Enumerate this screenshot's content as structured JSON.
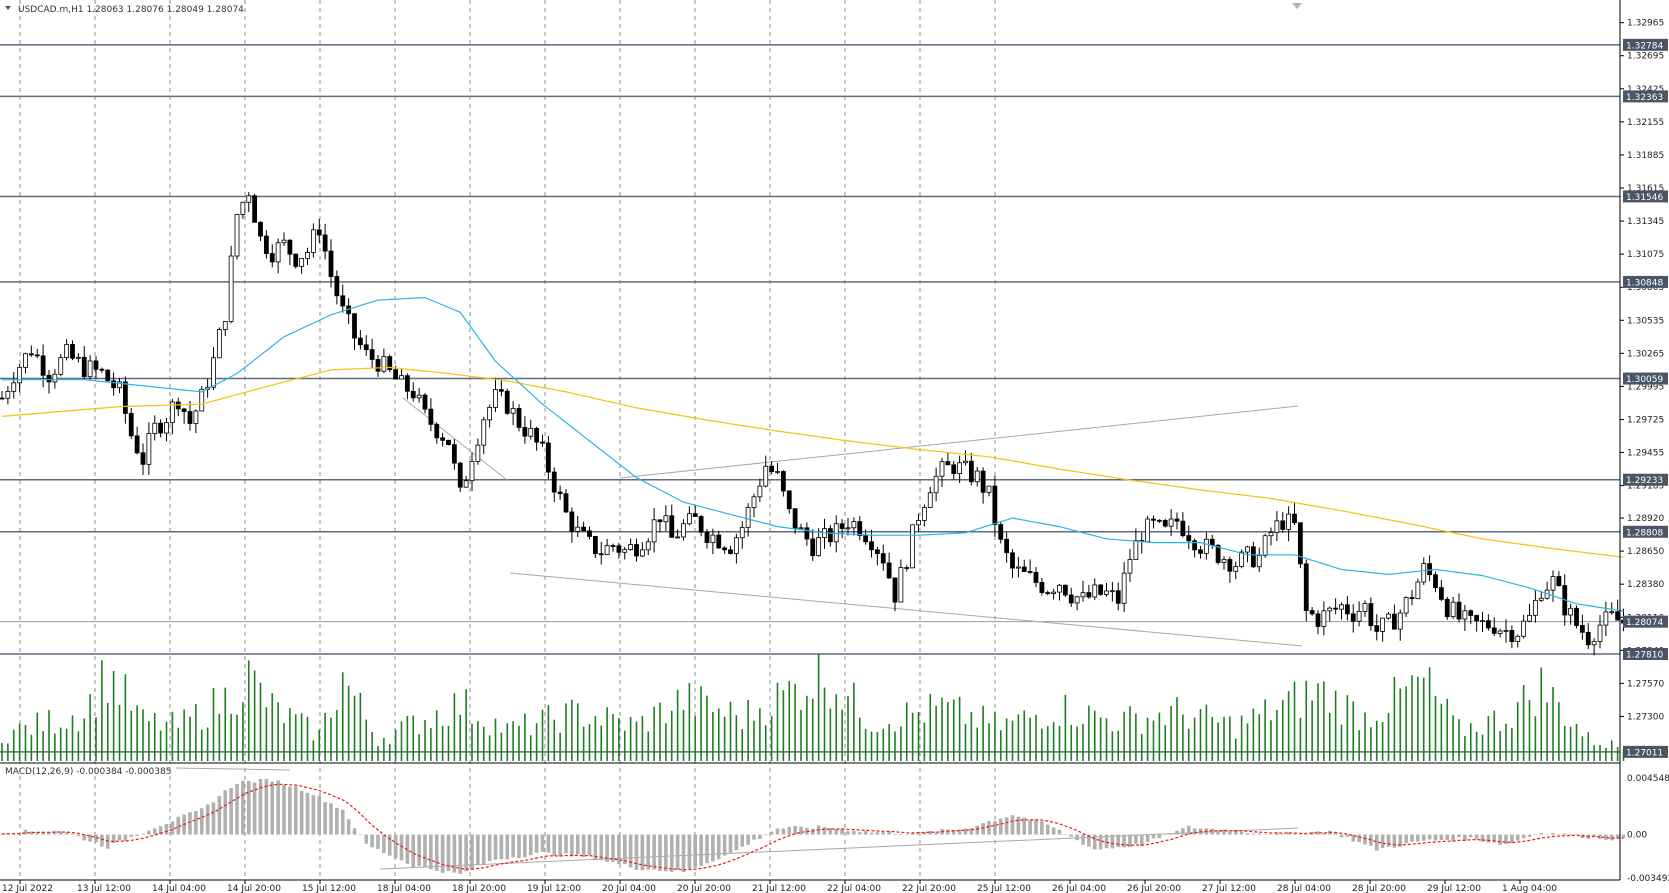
{
  "header": {
    "symbol_info": "USDCAD.m,H1  1.28063 1.28076 1.28049 1.28074",
    "macd_info": "MACD(12,26,9) -0.000384 -0.000385"
  },
  "colors": {
    "background": "#ffffff",
    "candle_up": "#ffffff",
    "candle_down": "#000000",
    "candle_wick": "#000000",
    "volume": "#1e7d1e",
    "ma_fast": "#29b6e6",
    "ma_slow": "#f2c40f",
    "level_line": "#5b6b80",
    "trend_line": "#a8a8a8",
    "grid": "#8c8c8c",
    "macd_hist": "#b0b0b0",
    "macd_signal": "#e0201a"
  },
  "chart_data": {
    "type": "candlestick",
    "symbol": "USDCAD.m",
    "timeframe": "H1",
    "last_ohlc": {
      "open": 1.28063,
      "high": 1.28076,
      "low": 1.28049,
      "close": 1.28074
    },
    "price_ylim": [
      1.2692,
      1.3315
    ],
    "price_ticks": [
      "1.32965",
      "1.32695",
      "1.32425",
      "1.32155",
      "1.31885",
      "1.31615",
      "1.31345",
      "1.31075",
      "1.30805",
      "1.30535",
      "1.30265",
      "1.29995",
      "1.29725",
      "1.29455",
      "1.29185",
      "1.28920",
      "1.28650",
      "1.28380",
      "1.28110",
      "1.27840",
      "1.27570",
      "1.27300"
    ],
    "level_lines": [
      {
        "label": "1.32784",
        "value": 1.32784
      },
      {
        "label": "1.32363",
        "value": 1.32363
      },
      {
        "label": "1.31546",
        "value": 1.31546
      },
      {
        "label": "1.30848",
        "value": 1.30848
      },
      {
        "label": "1.30059",
        "value": 1.30059
      },
      {
        "label": "1.29233",
        "value": 1.29233
      },
      {
        "label": "1.28808",
        "value": 1.28808
      },
      {
        "label": "1.27810",
        "value": 1.2781
      },
      {
        "label": "1.27011",
        "value": 1.27011
      }
    ],
    "current_price": {
      "label": "1.28074",
      "value": 1.28074
    },
    "x_labels": [
      "12 Jul 2022",
      "13 Jul 12:00",
      "14 Jul 04:00",
      "14 Jul 20:00",
      "15 Jul 12:00",
      "18 Jul 04:00",
      "18 Jul 20:00",
      "19 Jul 12:00",
      "20 Jul 04:00",
      "20 Jul 20:00",
      "21 Jul 12:00",
      "22 Jul 04:00",
      "22 Jul 20:00",
      "25 Jul 12:00",
      "26 Jul 04:00",
      "26 Jul 20:00",
      "27 Jul 12:00",
      "28 Jul 04:00",
      "28 Jul 20:00",
      "29 Jul 12:00",
      "1 Aug 04:00"
    ],
    "anchors": [
      [
        0,
        1.299
      ],
      [
        2,
        1.301
      ],
      [
        5,
        1.303
      ],
      [
        8,
        1.301
      ],
      [
        11,
        1.3025
      ],
      [
        14,
        1.3015
      ],
      [
        17,
        1.301
      ],
      [
        20,
        1.2995
      ],
      [
        22,
        1.296
      ],
      [
        24,
        1.294
      ],
      [
        26,
        1.2965
      ],
      [
        28,
        1.2975
      ],
      [
        30,
        1.299
      ],
      [
        32,
        1.297
      ],
      [
        34,
        1.299
      ],
      [
        36,
        1.302
      ],
      [
        38,
        1.306
      ],
      [
        40,
        1.314
      ],
      [
        42,
        1.316
      ],
      [
        44,
        1.312
      ],
      [
        46,
        1.311
      ],
      [
        48,
        1.3115
      ],
      [
        50,
        1.3105
      ],
      [
        52,
        1.311
      ],
      [
        54,
        1.313
      ],
      [
        56,
        1.309
      ],
      [
        58,
        1.306
      ],
      [
        60,
        1.304
      ],
      [
        62,
        1.3025
      ],
      [
        64,
        1.302
      ],
      [
        66,
        1.301
      ],
      [
        68,
        1.3
      ],
      [
        70,
        1.2995
      ],
      [
        72,
        1.2975
      ],
      [
        74,
        1.2965
      ],
      [
        76,
        1.2955
      ],
      [
        78,
        1.291
      ],
      [
        80,
        1.2945
      ],
      [
        82,
        1.2975
      ],
      [
        84,
        1.299
      ],
      [
        86,
        1.2985
      ],
      [
        88,
        1.297
      ],
      [
        90,
        1.296
      ],
      [
        92,
        1.2945
      ],
      [
        94,
        1.292
      ],
      [
        96,
        1.2895
      ],
      [
        98,
        1.288
      ],
      [
        100,
        1.287
      ],
      [
        102,
        1.2865
      ],
      [
        104,
        1.287
      ],
      [
        106,
        1.2865
      ],
      [
        108,
        1.287
      ],
      [
        110,
        1.288
      ],
      [
        112,
        1.2895
      ],
      [
        114,
        1.2875
      ],
      [
        116,
        1.2885
      ],
      [
        118,
        1.289
      ],
      [
        120,
        1.288
      ],
      [
        122,
        1.2875
      ],
      [
        124,
        1.287
      ],
      [
        126,
        1.2885
      ],
      [
        128,
        1.291
      ],
      [
        130,
        1.2935
      ],
      [
        132,
        1.2925
      ],
      [
        134,
        1.2895
      ],
      [
        136,
        1.288
      ],
      [
        138,
        1.287
      ],
      [
        140,
        1.2875
      ],
      [
        142,
        1.288
      ],
      [
        144,
        1.289
      ],
      [
        146,
        1.2885
      ],
      [
        148,
        1.2875
      ],
      [
        150,
        1.286
      ],
      [
        152,
        1.283
      ],
      [
        154,
        1.286
      ],
      [
        156,
        1.2895
      ],
      [
        158,
        1.292
      ],
      [
        160,
        1.293
      ],
      [
        162,
        1.2935
      ],
      [
        164,
        1.293
      ],
      [
        166,
        1.2925
      ],
      [
        168,
        1.291
      ],
      [
        170,
        1.287
      ],
      [
        172,
        1.285
      ],
      [
        174,
        1.2845
      ],
      [
        176,
        1.284
      ],
      [
        178,
        1.2835
      ],
      [
        180,
        1.284
      ],
      [
        182,
        1.283
      ],
      [
        184,
        1.2825
      ],
      [
        186,
        1.283
      ],
      [
        188,
        1.283
      ],
      [
        190,
        1.2825
      ],
      [
        192,
        1.286
      ],
      [
        194,
        1.288
      ],
      [
        196,
        1.2885
      ],
      [
        198,
        1.288
      ],
      [
        200,
        1.289
      ],
      [
        202,
        1.288
      ],
      [
        204,
        1.287
      ],
      [
        206,
        1.2865
      ],
      [
        208,
        1.286
      ],
      [
        210,
        1.2855
      ],
      [
        212,
        1.286
      ],
      [
        214,
        1.286
      ],
      [
        216,
        1.288
      ],
      [
        218,
        1.289
      ],
      [
        220,
        1.2885
      ],
      [
        222,
        1.2815
      ],
      [
        224,
        1.281
      ],
      [
        226,
        1.2815
      ],
      [
        228,
        1.282
      ],
      [
        230,
        1.2815
      ],
      [
        232,
        1.282
      ],
      [
        234,
        1.28
      ],
      [
        236,
        1.2805
      ],
      [
        238,
        1.2815
      ],
      [
        240,
        1.283
      ],
      [
        242,
        1.285
      ],
      [
        244,
        1.284
      ],
      [
        246,
        1.282
      ],
      [
        248,
        1.281
      ],
      [
        250,
        1.2805
      ],
      [
        252,
        1.2805
      ],
      [
        254,
        1.2805
      ],
      [
        256,
        1.28
      ],
      [
        258,
        1.28
      ],
      [
        260,
        1.281
      ],
      [
        262,
        1.2835
      ],
      [
        264,
        1.284
      ],
      [
        266,
        1.282
      ],
      [
        268,
        1.2805
      ],
      [
        270,
        1.2795
      ],
      [
        272,
        1.2805
      ],
      [
        274,
        1.281
      ],
      [
        276,
        1.2807
      ]
    ],
    "ma_fast_anchors": [
      [
        0,
        1.3005
      ],
      [
        14,
        1.3005
      ],
      [
        24,
        1.3
      ],
      [
        34,
        1.2995
      ],
      [
        40,
        1.301
      ],
      [
        48,
        1.304
      ],
      [
        56,
        1.3058
      ],
      [
        64,
        1.307
      ],
      [
        72,
        1.3072
      ],
      [
        78,
        1.306
      ],
      [
        84,
        1.302
      ],
      [
        92,
        1.2985
      ],
      [
        100,
        1.2955
      ],
      [
        108,
        1.2925
      ],
      [
        116,
        1.2905
      ],
      [
        124,
        1.2895
      ],
      [
        132,
        1.2885
      ],
      [
        140,
        1.288
      ],
      [
        148,
        1.2878
      ],
      [
        156,
        1.2878
      ],
      [
        164,
        1.288
      ],
      [
        172,
        1.2892
      ],
      [
        180,
        1.2885
      ],
      [
        188,
        1.2875
      ],
      [
        196,
        1.2872
      ],
      [
        204,
        1.2872
      ],
      [
        212,
        1.2862
      ],
      [
        220,
        1.2862
      ],
      [
        228,
        1.285
      ],
      [
        236,
        1.2846
      ],
      [
        244,
        1.285
      ],
      [
        252,
        1.2845
      ],
      [
        260,
        1.2835
      ],
      [
        268,
        1.2822
      ],
      [
        276,
        1.2816
      ]
    ],
    "ma_slow_anchors": [
      [
        0,
        1.2975
      ],
      [
        20,
        1.2983
      ],
      [
        34,
        1.2985
      ],
      [
        44,
        1.2998
      ],
      [
        56,
        1.3013
      ],
      [
        66,
        1.3015
      ],
      [
        76,
        1.301
      ],
      [
        86,
        1.3004
      ],
      [
        96,
        1.2995
      ],
      [
        108,
        1.2982
      ],
      [
        120,
        1.2972
      ],
      [
        132,
        1.2963
      ],
      [
        144,
        1.2955
      ],
      [
        156,
        1.2948
      ],
      [
        168,
        1.2942
      ],
      [
        180,
        1.2932
      ],
      [
        192,
        1.2923
      ],
      [
        204,
        1.2915
      ],
      [
        216,
        1.2908
      ],
      [
        228,
        1.2898
      ],
      [
        240,
        1.2887
      ],
      [
        252,
        1.2875
      ],
      [
        264,
        1.2867
      ],
      [
        276,
        1.286
      ]
    ],
    "volume_anchors": [
      [
        0,
        0.3
      ],
      [
        14,
        0.55
      ],
      [
        18,
        1.0
      ],
      [
        24,
        0.45
      ],
      [
        30,
        0.4
      ],
      [
        38,
        0.7
      ],
      [
        42,
        0.95
      ],
      [
        46,
        0.6
      ],
      [
        54,
        0.3
      ],
      [
        58,
        0.95
      ],
      [
        64,
        0.25
      ],
      [
        78,
        0.65
      ],
      [
        86,
        0.35
      ],
      [
        98,
        0.55
      ],
      [
        108,
        0.4
      ],
      [
        116,
        0.7
      ],
      [
        126,
        0.5
      ],
      [
        140,
        1.0
      ],
      [
        148,
        0.45
      ],
      [
        160,
        0.6
      ],
      [
        170,
        0.4
      ],
      [
        180,
        0.6
      ],
      [
        190,
        0.45
      ],
      [
        200,
        0.55
      ],
      [
        210,
        0.4
      ],
      [
        224,
        0.8
      ],
      [
        232,
        0.5
      ],
      [
        242,
        0.9
      ],
      [
        248,
        0.35
      ],
      [
        256,
        0.5
      ],
      [
        262,
        0.85
      ],
      [
        270,
        0.25
      ],
      [
        276,
        0.15
      ]
    ],
    "macd_ylim": [
      -0.003492,
      0.004548
    ],
    "macd_ticks": [
      "0.004548",
      "0.00",
      "-0.003492"
    ],
    "macd_hist_anchors": [
      [
        0,
        0.0002
      ],
      [
        10,
        0.0003
      ],
      [
        18,
        -0.001
      ],
      [
        26,
        0.0006
      ],
      [
        34,
        0.002
      ],
      [
        40,
        0.0042
      ],
      [
        46,
        0.0044
      ],
      [
        52,
        0.0035
      ],
      [
        58,
        0.002
      ],
      [
        62,
        -0.0008
      ],
      [
        70,
        -0.0025
      ],
      [
        78,
        -0.0032
      ],
      [
        84,
        -0.002
      ],
      [
        92,
        -0.0015
      ],
      [
        100,
        -0.0018
      ],
      [
        108,
        -0.0027
      ],
      [
        116,
        -0.003
      ],
      [
        124,
        -0.0015
      ],
      [
        132,
        0.0005
      ],
      [
        140,
        0.0006
      ],
      [
        148,
        0.0002
      ],
      [
        156,
        0.0001
      ],
      [
        164,
        0.0005
      ],
      [
        172,
        0.0016
      ],
      [
        178,
        0.0008
      ],
      [
        186,
        -0.0012
      ],
      [
        194,
        -0.0008
      ],
      [
        202,
        0.0006
      ],
      [
        210,
        0.0003
      ],
      [
        218,
        0.0
      ],
      [
        226,
        0.0003
      ],
      [
        234,
        -0.0012
      ],
      [
        242,
        -0.0005
      ],
      [
        250,
        -0.0003
      ],
      [
        256,
        -0.0008
      ],
      [
        262,
        0.0002
      ],
      [
        270,
        -0.0002
      ],
      [
        276,
        -0.0004
      ]
    ]
  }
}
